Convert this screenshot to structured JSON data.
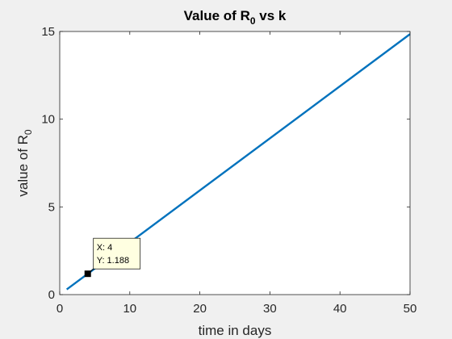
{
  "chart_data": {
    "type": "line",
    "title": {
      "text": "Value of R",
      "sub": "0",
      "tail": " vs k"
    },
    "xlabel": "time in days",
    "ylabel": {
      "text": "value of R",
      "sub": "0"
    },
    "xlim": [
      0,
      50
    ],
    "ylim": [
      0,
      15
    ],
    "xticks": [
      0,
      10,
      20,
      30,
      40,
      50
    ],
    "yticks": [
      0,
      5,
      10,
      15
    ],
    "grid": false,
    "series": [
      {
        "x": [
          1,
          50
        ],
        "y": [
          0.297,
          14.85
        ],
        "color": "#0072bd"
      }
    ],
    "datatip": {
      "x": 4,
      "y": 1.188,
      "x_text": "X: 4",
      "y_text": "Y: 1.188"
    }
  },
  "colors": {
    "background": "#f0f0f0",
    "plot_area": "#ffffff",
    "line": "#0072bd",
    "datatip_fill": "#ffffe1"
  }
}
